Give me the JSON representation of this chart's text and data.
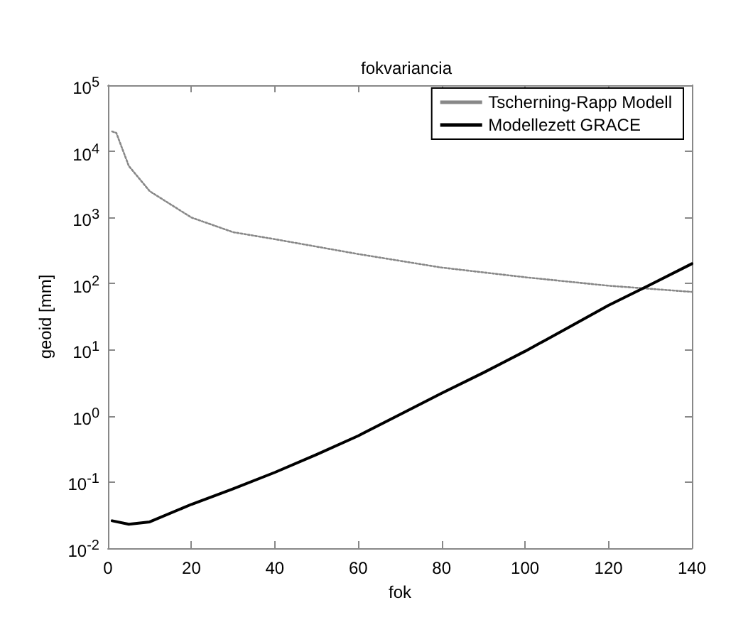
{
  "chart_data": {
    "type": "line",
    "title": "fokvariancia",
    "xlabel": "fok",
    "ylabel": "geoid [mm]",
    "xlim": [
      0,
      140
    ],
    "xticks": [
      0,
      20,
      40,
      60,
      80,
      100,
      120,
      140
    ],
    "ylim": [
      0.01,
      100000
    ],
    "yticks": [
      {
        "value": 0.01,
        "label": "10$^{-2}$"
      },
      {
        "value": 0.1,
        "label": "10$^{-1}$"
      },
      {
        "value": 1,
        "label": "10$^{0}$"
      },
      {
        "value": 10,
        "label": "10$^{1}$"
      },
      {
        "value": 100,
        "label": "10$^{2}$"
      },
      {
        "value": 1000,
        "label": "10$^{3}$"
      },
      {
        "value": 10000,
        "label": "10$^{4}$"
      },
      {
        "value": 100000,
        "label": "10$^{5}$"
      }
    ],
    "log": "y",
    "grid": false,
    "legend": "top right",
    "marker": "none",
    "series": [
      {
        "name": "Tscherning-Rapp Modell",
        "color": "#888888",
        "line_style": "dotted",
        "x": [
          1,
          2,
          5,
          10,
          20,
          30,
          40,
          60,
          80,
          100,
          120,
          140
        ],
        "values": [
          20000,
          19000,
          6000,
          2500,
          1000,
          600,
          470,
          280,
          175,
          125,
          93,
          75
        ]
      },
      {
        "name": "Modellezett GRACE",
        "color": "#000000",
        "line_style": "solid",
        "x": [
          1,
          5,
          10,
          20,
          30,
          40,
          50,
          60,
          70,
          80,
          90,
          100,
          110,
          120,
          130,
          140
        ],
        "values": [
          0.026,
          0.023,
          0.025,
          0.046,
          0.079,
          0.14,
          0.26,
          0.5,
          1.05,
          2.2,
          4.5,
          9.5,
          21,
          47,
          96,
          200
        ]
      }
    ]
  }
}
